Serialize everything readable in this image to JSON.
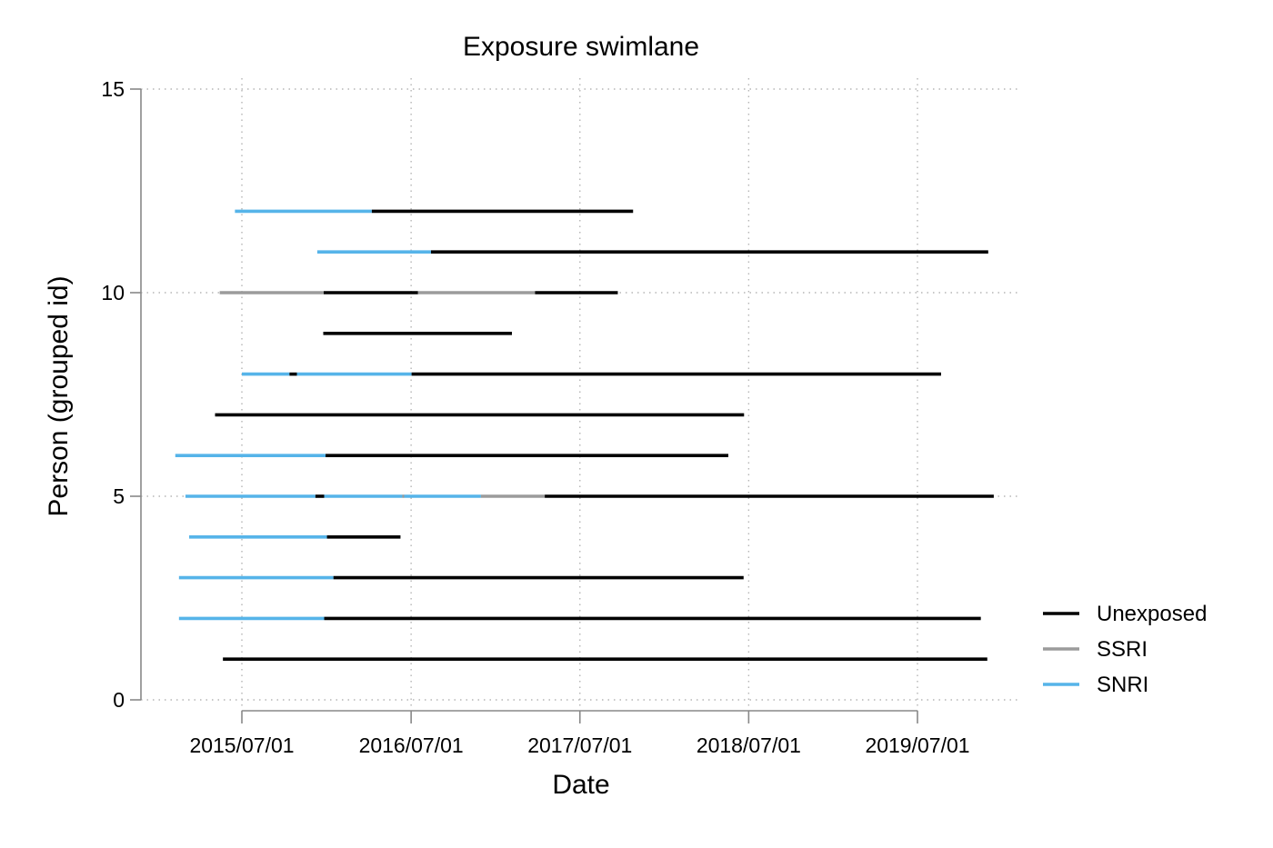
{
  "chart_data": {
    "type": "swimlane",
    "title": "Exposure swimlane",
    "xlabel": "Date",
    "ylabel": "Person (grouped id)",
    "x_ticks": [
      "2015/07/01",
      "2016/07/01",
      "2017/07/01",
      "2018/07/01",
      "2019/07/01"
    ],
    "y_ticks": [
      0,
      5,
      10,
      15
    ],
    "xlim": [
      "2015-01-01",
      "2020-01-20"
    ],
    "ylim": [
      -0.5,
      15.5
    ],
    "grid": true,
    "legend_position": "right",
    "legend": [
      {
        "name": "Unexposed",
        "color": "#000000"
      },
      {
        "name": "SSRI",
        "color": "#9b9b9b"
      },
      {
        "name": "SNRI",
        "color": "#56b4e9"
      }
    ],
    "lanes": [
      {
        "y": 1,
        "segments": [
          {
            "start": "2015-05-21",
            "end": "2019-11-29",
            "category": "Unexposed"
          }
        ]
      },
      {
        "y": 2,
        "segments": [
          {
            "start": "2015-02-15",
            "end": "2015-12-26",
            "category": "SNRI"
          },
          {
            "start": "2015-12-26",
            "end": "2019-11-15",
            "category": "Unexposed"
          }
        ]
      },
      {
        "y": 3,
        "segments": [
          {
            "start": "2015-02-15",
            "end": "2016-01-15",
            "category": "SNRI"
          },
          {
            "start": "2016-01-15",
            "end": "2018-06-20",
            "category": "Unexposed"
          }
        ]
      },
      {
        "y": 4,
        "segments": [
          {
            "start": "2015-03-09",
            "end": "2016-01-01",
            "category": "SNRI"
          },
          {
            "start": "2016-01-01",
            "end": "2016-06-08",
            "category": "Unexposed"
          }
        ]
      },
      {
        "y": 5,
        "segments": [
          {
            "start": "2015-03-01",
            "end": "2015-12-07",
            "category": "SNRI"
          },
          {
            "start": "2015-12-07",
            "end": "2015-12-26",
            "category": "Unexposed"
          },
          {
            "start": "2015-12-26",
            "end": "2016-06-12",
            "category": "SNRI"
          },
          {
            "start": "2016-06-12",
            "end": "2016-06-16",
            "category": "SSRI"
          },
          {
            "start": "2016-06-16",
            "end": "2016-11-29",
            "category": "SNRI"
          },
          {
            "start": "2016-11-29",
            "end": "2017-04-16",
            "category": "SSRI"
          },
          {
            "start": "2017-04-16",
            "end": "2019-12-13",
            "category": "Unexposed"
          }
        ]
      },
      {
        "y": 6,
        "segments": [
          {
            "start": "2015-02-07",
            "end": "2015-12-29",
            "category": "SNRI"
          },
          {
            "start": "2015-12-29",
            "end": "2018-05-18",
            "category": "Unexposed"
          }
        ]
      },
      {
        "y": 7,
        "segments": [
          {
            "start": "2015-05-04",
            "end": "2018-06-21",
            "category": "Unexposed"
          }
        ]
      },
      {
        "y": 8,
        "segments": [
          {
            "start": "2015-07-01",
            "end": "2015-10-12",
            "category": "SNRI"
          },
          {
            "start": "2015-10-12",
            "end": "2015-10-28",
            "category": "Unexposed"
          },
          {
            "start": "2015-10-28",
            "end": "2016-07-02",
            "category": "SNRI"
          },
          {
            "start": "2016-07-02",
            "end": "2019-08-21",
            "category": "Unexposed"
          }
        ]
      },
      {
        "y": 9,
        "segments": [
          {
            "start": "2015-12-24",
            "end": "2017-02-04",
            "category": "Unexposed"
          }
        ]
      },
      {
        "y": 10,
        "segments": [
          {
            "start": "2015-05-14",
            "end": "2015-12-25",
            "category": "SSRI"
          },
          {
            "start": "2015-12-25",
            "end": "2016-07-16",
            "category": "Unexposed"
          },
          {
            "start": "2016-07-16",
            "end": "2017-03-26",
            "category": "SSRI"
          },
          {
            "start": "2017-03-26",
            "end": "2017-09-21",
            "category": "Unexposed"
          }
        ]
      },
      {
        "y": 11,
        "segments": [
          {
            "start": "2015-12-11",
            "end": "2016-08-13",
            "category": "SNRI"
          },
          {
            "start": "2016-08-13",
            "end": "2019-12-01",
            "category": "Unexposed"
          }
        ]
      },
      {
        "y": 12,
        "segments": [
          {
            "start": "2015-06-16",
            "end": "2016-04-07",
            "category": "SNRI"
          },
          {
            "start": "2016-04-07",
            "end": "2017-10-24",
            "category": "Unexposed"
          }
        ]
      }
    ]
  }
}
